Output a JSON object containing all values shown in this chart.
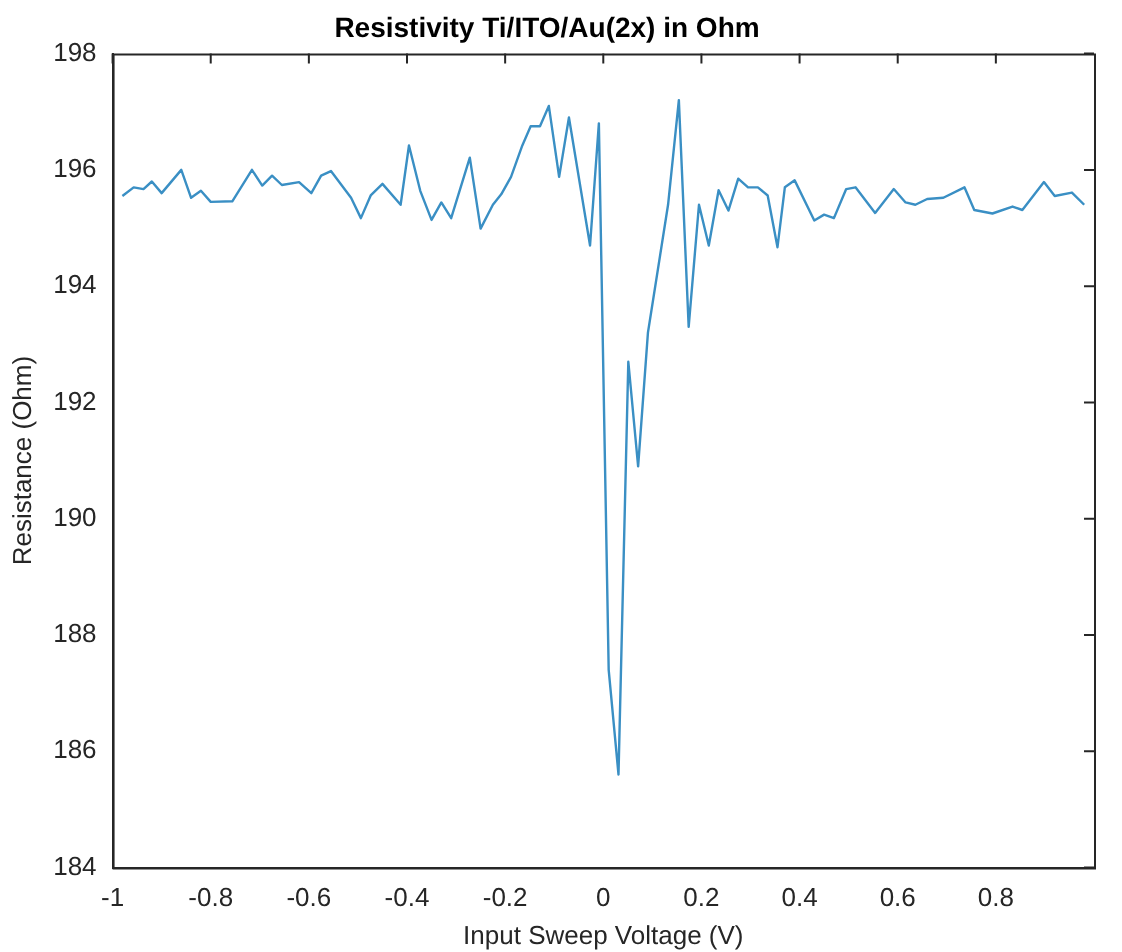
{
  "chart_data": {
    "type": "line",
    "title": "Resistivity Ti/ITO/Au(2x) in Ohm",
    "xlabel": "Input Sweep Voltage (V)",
    "ylabel": "Resistance (Ohm)",
    "xlim": [
      -1,
      1
    ],
    "xticks": [
      -1,
      -0.8,
      -0.6,
      -0.4,
      -0.2,
      0,
      0.2,
      0.4,
      0.6,
      0.8
    ],
    "ylim": [
      184,
      198
    ],
    "yticks": [
      184,
      186,
      188,
      190,
      192,
      194,
      196,
      198
    ],
    "grid": false,
    "legend": false,
    "marker": "none",
    "line_style": "solid",
    "series": [
      {
        "color": "#3a8fc4",
        "x": [
          -0.98,
          -0.957,
          -0.937,
          -0.92,
          -0.9,
          -0.86,
          -0.84,
          -0.82,
          -0.8,
          -0.756,
          -0.716,
          -0.695,
          -0.675,
          -0.655,
          -0.62,
          -0.595,
          -0.575,
          -0.555,
          -0.514,
          -0.494,
          -0.474,
          -0.45,
          -0.413,
          -0.396,
          -0.373,
          -0.35,
          -0.33,
          -0.31,
          -0.272,
          -0.25,
          -0.225,
          -0.208,
          -0.188,
          -0.165,
          -0.148,
          -0.129,
          -0.111,
          -0.09,
          -0.07,
          -0.027,
          -0.009,
          0.011,
          0.031,
          0.051,
          0.071,
          0.091,
          0.132,
          0.154,
          0.174,
          0.195,
          0.215,
          0.235,
          0.255,
          0.275,
          0.295,
          0.315,
          0.335,
          0.355,
          0.37,
          0.39,
          0.43,
          0.45,
          0.47,
          0.495,
          0.514,
          0.554,
          0.592,
          0.616,
          0.636,
          0.66,
          0.693,
          0.736,
          0.756,
          0.793,
          0.834,
          0.854,
          0.898,
          0.92,
          0.955,
          0.98
        ],
        "values": [
          195.55,
          195.7,
          195.67,
          195.8,
          195.6,
          196.0,
          195.52,
          195.64,
          195.45,
          195.46,
          196.0,
          195.73,
          195.9,
          195.74,
          195.79,
          195.6,
          195.9,
          195.98,
          195.52,
          195.17,
          195.56,
          195.76,
          195.4,
          196.42,
          195.64,
          195.14,
          195.44,
          195.17,
          196.21,
          194.99,
          195.4,
          195.58,
          195.88,
          196.42,
          196.75,
          196.75,
          197.1,
          195.88,
          196.9,
          194.7,
          196.8,
          187.4,
          185.6,
          192.7,
          190.9,
          193.2,
          195.4,
          197.2,
          193.3,
          195.4,
          194.7,
          195.65,
          195.3,
          195.85,
          195.7,
          195.7,
          195.56,
          194.67,
          195.7,
          195.82,
          195.13,
          195.23,
          195.17,
          195.67,
          195.7,
          195.26,
          195.67,
          195.44,
          195.4,
          195.5,
          195.52,
          195.7,
          195.31,
          195.25,
          195.37,
          195.31,
          195.79,
          195.55,
          195.61,
          195.4
        ]
      }
    ]
  }
}
